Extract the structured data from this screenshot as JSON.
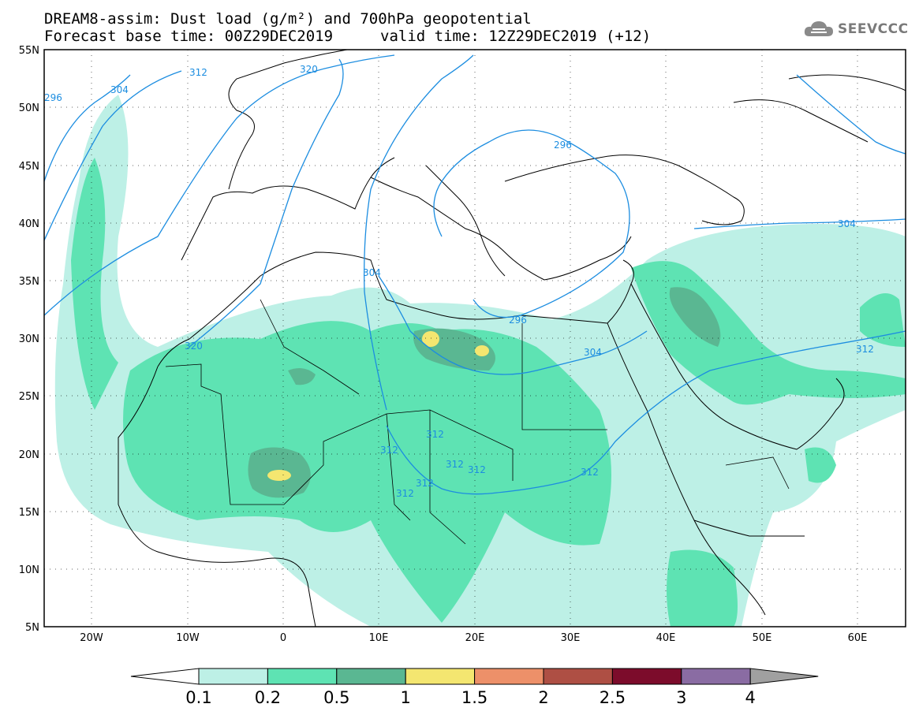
{
  "header": {
    "title_line1": "DREAM8-assim: Dust load (g/m²) and 700hPa geopotential",
    "title_line2a": "Forecast base time: 00Z29DEC2019",
    "title_line2b": "valid time: 12Z29DEC2019 (+12)"
  },
  "logo": {
    "text": "SEEVCCC",
    "icon": "cloud-icon"
  },
  "map": {
    "lat_ticks": [
      "55N",
      "50N",
      "45N",
      "40N",
      "35N",
      "30N",
      "25N",
      "20N",
      "15N",
      "10N",
      "5N"
    ],
    "lon_ticks": [
      "20W",
      "10W",
      "0",
      "10E",
      "20E",
      "30E",
      "40E",
      "50E",
      "60E"
    ],
    "contour_color": "#1c8de0",
    "contour_labels": [
      "320",
      "312",
      "304",
      "296",
      "304",
      "320",
      "312",
      "312",
      "312",
      "312",
      "312",
      "312",
      "296",
      "304",
      "296",
      "304",
      "312",
      "312"
    ]
  },
  "colorbar": {
    "colors": [
      "#ffffff",
      "#bdf0e6",
      "#5ee3b3",
      "#5ab792",
      "#f4e670",
      "#ed9069",
      "#ae4f44",
      "#7c0c2b",
      "#8a6ca3",
      "#a0a0a0"
    ],
    "labels": [
      "0.1",
      "0.2",
      "0.5",
      "1",
      "1.5",
      "2",
      "2.5",
      "3",
      "4"
    ]
  }
}
